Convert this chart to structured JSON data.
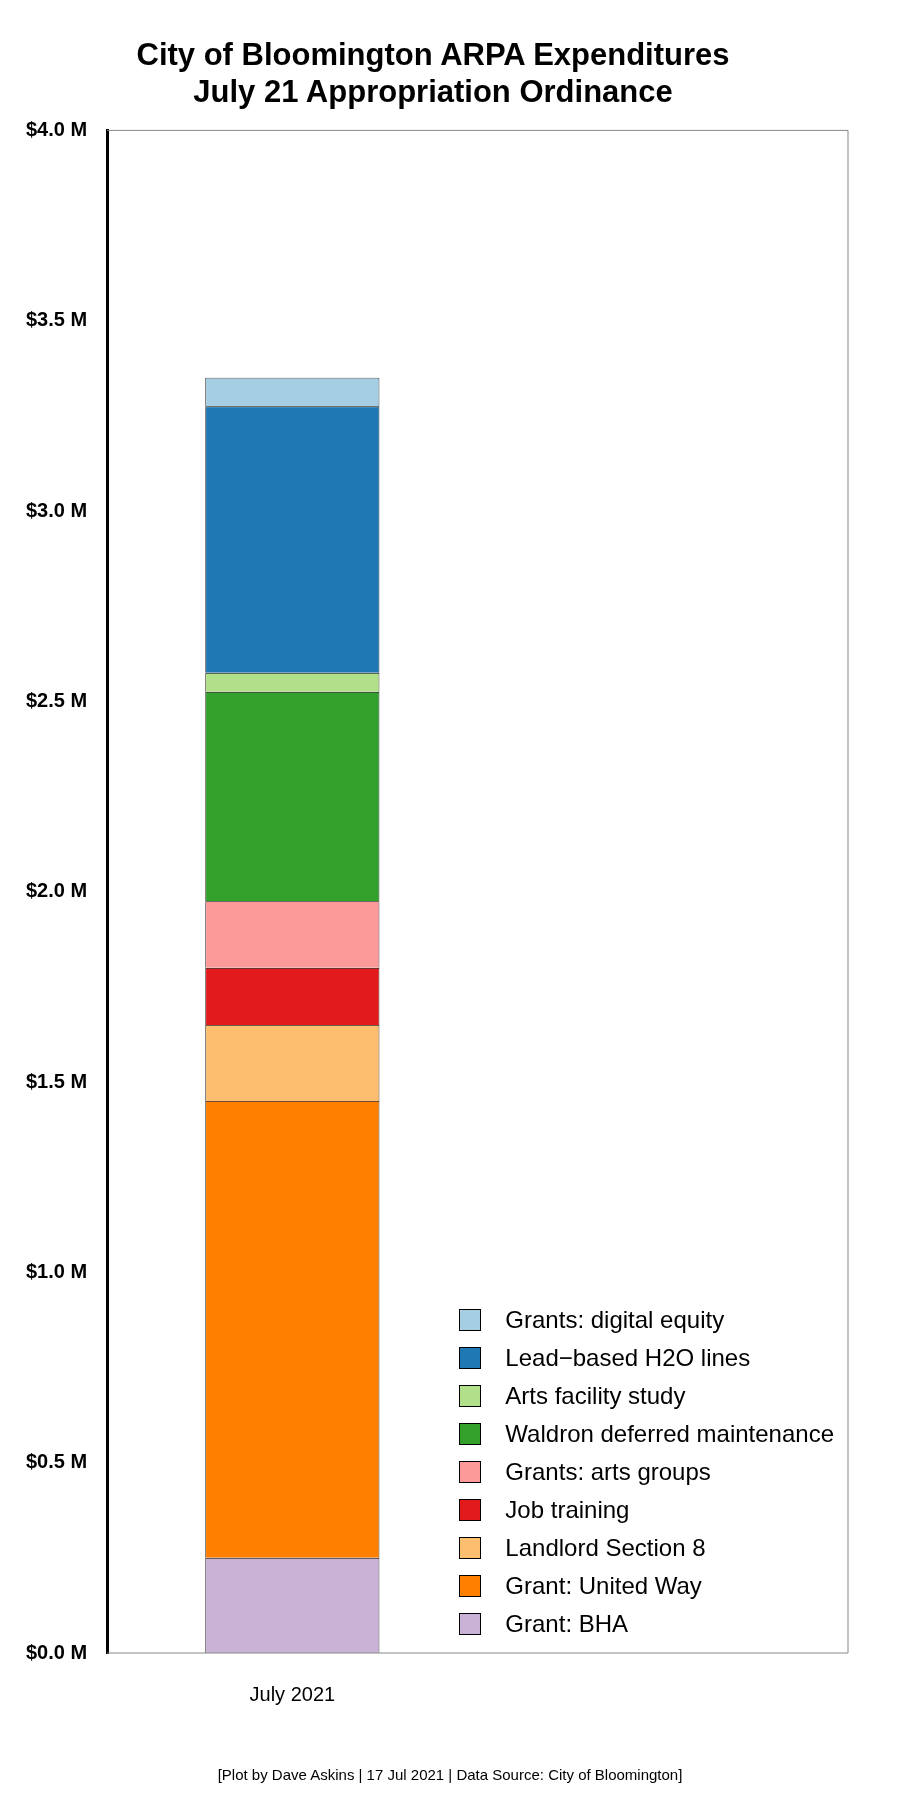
{
  "chart_data": {
    "type": "bar",
    "title": "City of Bloomington ARPA Expenditures\nJuly 21 Appropriation Ordinance",
    "categories": [
      "July 2021"
    ],
    "stacked": true,
    "series": [
      {
        "name": "Grant: BHA",
        "color": "#cab2d6",
        "values": [
          0.25
        ]
      },
      {
        "name": "Grant: United Way",
        "color": "#ff7f00",
        "values": [
          1.2
        ]
      },
      {
        "name": "Landlord Section 8",
        "color": "#fdbf6f",
        "values": [
          0.2
        ]
      },
      {
        "name": "Job training",
        "color": "#e31a1c",
        "values": [
          0.15
        ]
      },
      {
        "name": "Grants: arts groups",
        "color": "#fb9a99",
        "values": [
          0.175
        ]
      },
      {
        "name": "Waldron deferred maintenance",
        "color": "#33a02c",
        "values": [
          0.55
        ]
      },
      {
        "name": "Arts facility study",
        "color": "#b2df8a",
        "values": [
          0.05
        ]
      },
      {
        "name": "Lead−based H2O lines",
        "color": "#1f78b4",
        "values": [
          0.7
        ]
      },
      {
        "name": "Grants: digital equity",
        "color": "#a6cee3",
        "values": [
          0.075
        ]
      }
    ],
    "ylim": [
      0,
      4
    ],
    "yticks": [
      {
        "value": 0,
        "label": "$0.0 M"
      },
      {
        "value": 0.5,
        "label": "$0.5 M"
      },
      {
        "value": 1,
        "label": "$1.0 M"
      },
      {
        "value": 1.5,
        "label": "$1.5 M"
      },
      {
        "value": 2,
        "label": "$2.0 M"
      },
      {
        "value": 2.5,
        "label": "$2.5 M"
      },
      {
        "value": 3,
        "label": "$3.0 M"
      },
      {
        "value": 3.5,
        "label": "$3.5 M"
      },
      {
        "value": 4,
        "label": "$4.0 M"
      }
    ],
    "grid": false,
    "legend": "bottom right",
    "annotations": [
      "[Plot by Dave Askins | 17 Jul 2021 | Data Source: City of Bloomington]"
    ]
  }
}
